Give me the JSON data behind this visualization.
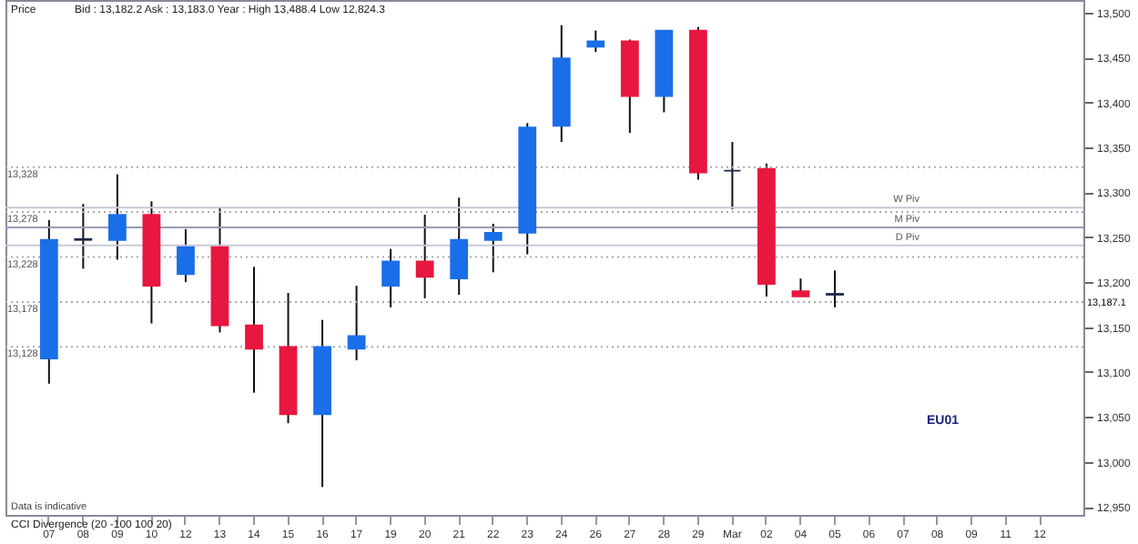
{
  "chart_data": {
    "type": "candlestick",
    "title": "Bid : 13,182.2  Ask : 13,183.0  Year : High 13,488.4  Low 12,824.3",
    "categories": [
      "07",
      "08",
      "09",
      "10",
      "12",
      "13",
      "14",
      "15",
      "16",
      "17",
      "19",
      "20",
      "21",
      "22",
      "23",
      "24",
      "26",
      "27",
      "28",
      "29",
      "Mar",
      "02",
      "04",
      "05",
      "06",
      "07",
      "08",
      "09",
      "11",
      "12"
    ],
    "ohlc": [
      [
        13115,
        13269,
        13087,
        13247
      ],
      [
        13247,
        13287,
        13215,
        13248
      ],
      [
        13247,
        13320,
        13225,
        13275
      ],
      [
        13275,
        13290,
        13154,
        13196
      ],
      [
        13209,
        13259,
        13200,
        13239
      ],
      [
        13239,
        13283,
        13144,
        13152
      ],
      [
        13152,
        13217,
        13077,
        13126
      ],
      [
        13128,
        13188,
        13043,
        13053
      ],
      [
        13053,
        13158,
        12972,
        13128
      ],
      [
        13126,
        13196,
        13113,
        13140
      ],
      [
        13196,
        13237,
        13172,
        13223
      ],
      [
        13223,
        13275,
        13182,
        13206
      ],
      [
        13204,
        13294,
        13186,
        13247
      ],
      [
        13247,
        13265,
        13211,
        13255
      ],
      [
        13255,
        13377,
        13231,
        13372
      ],
      [
        13374,
        13486,
        13356,
        13449
      ],
      [
        13462,
        13480,
        13456,
        13468
      ],
      [
        13468,
        13470,
        13366,
        13407
      ],
      [
        13407,
        13480,
        13389,
        13480
      ],
      [
        13480,
        13484,
        13314,
        13322
      ],
      [
        13324,
        13356,
        13281,
        13324
      ],
      [
        13326,
        13332,
        13184,
        13198
      ],
      [
        13190,
        13204,
        13184,
        13184
      ],
      [
        13186,
        13213,
        13172,
        13187
      ],
      null,
      null,
      null,
      null,
      null,
      null
    ],
    "colors": [
      "#1a6fe8",
      "#1a2a4a",
      "#1a6fe8",
      "#e8173f",
      "#1a6fe8",
      "#e8173f",
      "#e8173f",
      "#e8173f",
      "#1a6fe8",
      "#1a6fe8",
      "#1a6fe8",
      "#e8173f",
      "#1a6fe8",
      "#1a6fe8",
      "#1a6fe8",
      "#1a6fe8",
      "#1a6fe8",
      "#e8173f",
      "#1a6fe8",
      "#e8173f",
      "#1a2a4a",
      "#e8173f",
      "#e8173f",
      "#1a2a4a",
      null,
      null,
      null,
      null,
      null,
      null
    ],
    "ylim": [
      12941,
      13514
    ],
    "yticks": [
      {
        "value": 12950,
        "label": "12,950"
      },
      {
        "value": 13000,
        "label": "13,000"
      },
      {
        "value": 13050,
        "label": "13,050"
      },
      {
        "value": 13100,
        "label": "13,100"
      },
      {
        "value": 13150,
        "label": "13,150"
      },
      {
        "value": 13200,
        "label": "13,200"
      },
      {
        "value": 13250,
        "label": "13,250"
      },
      {
        "value": 13300,
        "label": "13,300"
      },
      {
        "value": 13350,
        "label": "13,350"
      },
      {
        "value": 13400,
        "label": "13,400"
      },
      {
        "value": 13450,
        "label": "13,450"
      },
      {
        "value": 13500,
        "label": "13,500"
      }
    ],
    "ref_lines": [
      {
        "axis": "y",
        "value": 13328,
        "label": "13,328",
        "color": "#aaaaaa",
        "line_style": "dotted"
      },
      {
        "axis": "y",
        "value": 13278,
        "label": "13,278",
        "color": "#aaaaaa",
        "line_style": "dotted"
      },
      {
        "axis": "y",
        "value": 13228,
        "label": "13,228",
        "color": "#aaaaaa",
        "line_style": "dotted"
      },
      {
        "axis": "y",
        "value": 13178,
        "label": "13,178",
        "color": "#aaaaaa",
        "line_style": "dotted"
      },
      {
        "axis": "y",
        "value": 13128,
        "label": "13,128",
        "color": "#aaaaaa",
        "line_style": "dotted"
      },
      {
        "axis": "y",
        "value": 13283,
        "label": "W Piv",
        "color": "#c8c8d8",
        "line_style": "solid"
      },
      {
        "axis": "y",
        "value": 13261,
        "label": "M Piv",
        "color": "#9a9ab8",
        "line_style": "solid"
      },
      {
        "axis": "y",
        "value": 13241,
        "label": "D Piv",
        "color": "#c8c8d8",
        "line_style": "solid"
      }
    ],
    "annotations": [
      "Price",
      "EU01",
      "CCI Divergence (20 -100 100 20)",
      "Data is indicative",
      "13,187.1"
    ],
    "grid": false
  }
}
